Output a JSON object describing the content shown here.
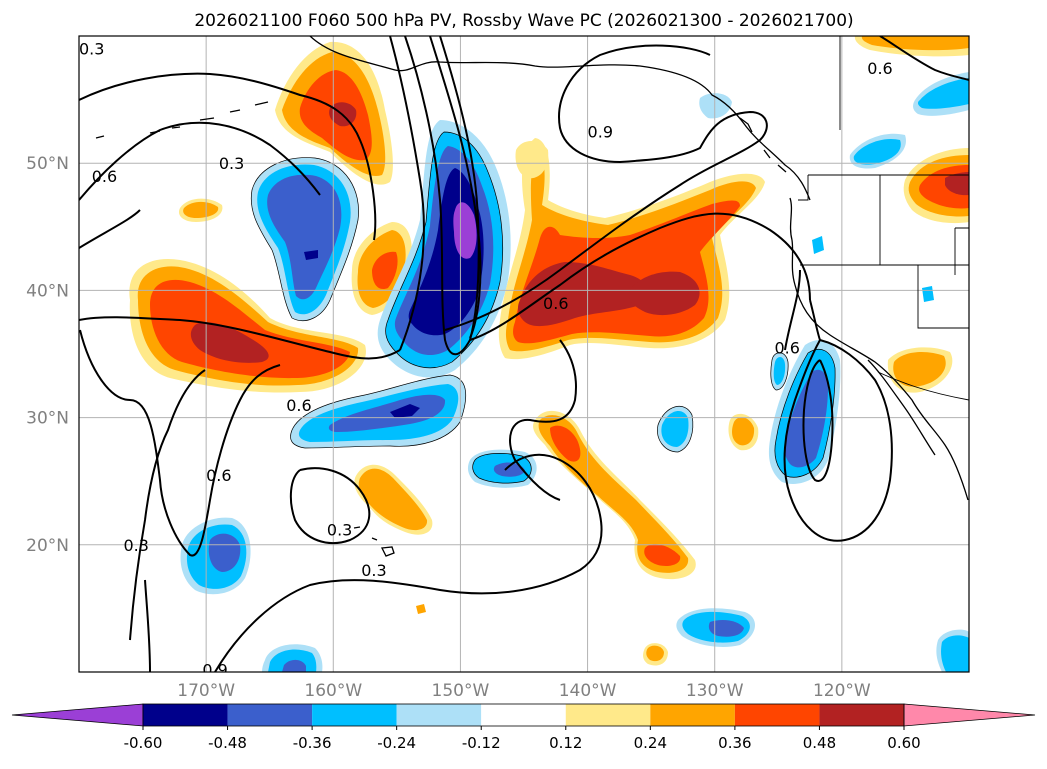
{
  "title": "2026021100 F060 500 hPa PV, Rossby Wave PC (2026021300 - 2026021700)",
  "map": {
    "projection": "cylindrical",
    "lon_range": [
      -180,
      -110
    ],
    "lat_range": [
      10,
      60
    ],
    "lon_ticks": [
      {
        "value": -170,
        "label": "170°W"
      },
      {
        "value": -160,
        "label": "160°W"
      },
      {
        "value": -150,
        "label": "150°W"
      },
      {
        "value": -140,
        "label": "140°W"
      },
      {
        "value": -130,
        "label": "130°W"
      },
      {
        "value": -120,
        "label": "120°W"
      }
    ],
    "lat_ticks": [
      {
        "value": 20,
        "label": "20°N"
      },
      {
        "value": 30,
        "label": "30°N"
      },
      {
        "value": 40,
        "label": "40°N"
      },
      {
        "value": 50,
        "label": "50°N"
      }
    ],
    "gridlines": true,
    "contour_labels": [
      {
        "text": "0.3",
        "lon": -179,
        "lat": 59
      },
      {
        "text": "0.6",
        "lon": -178,
        "lat": 49
      },
      {
        "text": "0.3",
        "lon": -168,
        "lat": 50
      },
      {
        "text": "0.9",
        "lon": -139,
        "lat": 52.5
      },
      {
        "text": "0.6",
        "lon": -117,
        "lat": 57.5
      },
      {
        "text": "0.6",
        "lon": -142.5,
        "lat": 39
      },
      {
        "text": "0.6",
        "lon": -162.7,
        "lat": 31
      },
      {
        "text": "0.6",
        "lon": -169,
        "lat": 25.5
      },
      {
        "text": "0.6",
        "lon": -124.3,
        "lat": 35.5
      },
      {
        "text": "0.3",
        "lon": -175.5,
        "lat": 20
      },
      {
        "text": "0.3",
        "lon": -159.5,
        "lat": 21.2
      },
      {
        "text": "0.3",
        "lon": -156.8,
        "lat": 18
      },
      {
        "text": "0.9",
        "lon": -169.3,
        "lat": 10.2
      }
    ]
  },
  "colorbar": {
    "levels": [
      "-0.60",
      "-0.48",
      "-0.36",
      "-0.24",
      "-0.12",
      "0.12",
      "0.24",
      "0.36",
      "0.48",
      "0.60"
    ],
    "colors": [
      "#9b3fd6",
      "#00008b",
      "#3b5fcc",
      "#00bfff",
      "#ade0f7",
      "#ffffff",
      "#ffe98a",
      "#ffa500",
      "#ff4500",
      "#b22222",
      "#ff88aa"
    ],
    "extend": "both"
  },
  "fill_colors": {
    "neg1": "#ade0f7",
    "neg2": "#00bfff",
    "neg3": "#3b5fcc",
    "neg4": "#00008b",
    "neg5": "#9b3fd6",
    "pos1": "#ffe98a",
    "pos2": "#ffa500",
    "pos3": "#ff4500",
    "pos4": "#b22222"
  }
}
